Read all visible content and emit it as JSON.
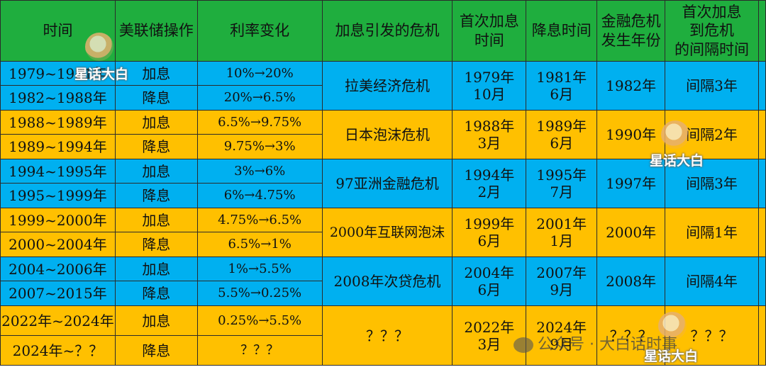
{
  "headers": {
    "time": "时间",
    "operation": "美联储操作",
    "rate_change": "利率变化",
    "crisis": "加息引发的危机",
    "first_hike_l1": "首次加息",
    "first_hike_l2": "时间",
    "cut_time": "降息时间",
    "crisis_year_l1": "金融危机",
    "crisis_year_l2": "发生年份",
    "interval_l1": "首次加息",
    "interval_l2": "到危机",
    "interval_l3": "的间隔时间"
  },
  "rows": [
    {
      "time": "1979~1981年",
      "op": "加息",
      "rate": "10%→20%"
    },
    {
      "time": "1982~1988年",
      "op": "降息",
      "rate": "20%→6.5%"
    },
    {
      "time": "1988~1989年",
      "op": "加息",
      "rate": "6.5%→9.75%"
    },
    {
      "time": "1989~1994年",
      "op": "降息",
      "rate": "9.75%→3%"
    },
    {
      "time": "1994~1995年",
      "op": "加息",
      "rate": "3%→6%"
    },
    {
      "time": "1995~1999年",
      "op": "降息",
      "rate": "6%→4.75%"
    },
    {
      "time": "1999~2000年",
      "op": "加息",
      "rate": "4.75%→6.5%"
    },
    {
      "time": "2000~2004年",
      "op": "降息",
      "rate": "6.5%→1%"
    },
    {
      "time": "2004~2006年",
      "op": "加息",
      "rate": "1%→5.5%"
    },
    {
      "time": "2007~2015年",
      "op": "降息",
      "rate": "5.5%→0.25%"
    },
    {
      "time": "2022年~2024年",
      "op": "加息",
      "rate": "0.25%→5.5%"
    },
    {
      "time": "2024年~？？",
      "op": "降息",
      "rate": "？？？"
    }
  ],
  "groups": [
    {
      "crisis": "拉美经济危机",
      "hike_l1": "1979年",
      "hike_l2": "10月",
      "cut_l1": "1981年",
      "cut_l2": "6月",
      "year": "1982年",
      "interval": "间隔3年"
    },
    {
      "crisis": "日本泡沫危机",
      "hike_l1": "1988年",
      "hike_l2": "3月",
      "cut_l1": "1989年",
      "cut_l2": "6月",
      "year": "1990年",
      "interval": "间隔2年"
    },
    {
      "crisis": "97亚洲金融危机",
      "hike_l1": "1994年",
      "hike_l2": "2月",
      "cut_l1": "1995年",
      "cut_l2": "7月",
      "year": "1997年",
      "interval": "间隔3年"
    },
    {
      "crisis": "2000年互联网泡沫",
      "hike_l1": "1999年",
      "hike_l2": "6月",
      "cut_l1": "2001年",
      "cut_l2": "1月",
      "year": "2000年",
      "interval": "间隔1年"
    },
    {
      "crisis": "2008年次贷危机",
      "hike_l1": "2004年",
      "hike_l2": "6月",
      "cut_l1": "2007年",
      "cut_l2": "9月",
      "year": "2008年",
      "interval": "间隔4年"
    },
    {
      "crisis": "？？？",
      "hike_l1": "2022年",
      "hike_l2": "3月",
      "cut_l1": "2024年",
      "cut_l2": "9月",
      "year": "？？？",
      "interval": "？？？"
    }
  ],
  "watermarks": {
    "brand": "星话大白",
    "wechat": "公众号 · 大白话时事"
  },
  "colors": {
    "header_green": "#1fae3e",
    "row_blue": "#00b0f0",
    "row_orange": "#ffc000"
  }
}
